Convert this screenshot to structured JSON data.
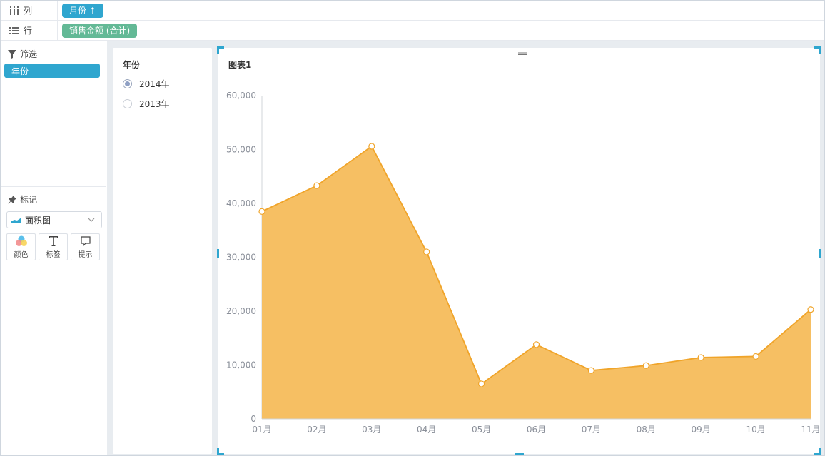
{
  "shelves": {
    "columns": {
      "label": "列",
      "pill": "月份 ↑"
    },
    "rows": {
      "label": "行",
      "pill": "销售金额 (合计)"
    }
  },
  "filter": {
    "title": "筛选",
    "pill": "年份"
  },
  "marks": {
    "title": "标记",
    "chart_type": "面积图",
    "buttons": [
      {
        "label": "颜色",
        "icon": "color-icon"
      },
      {
        "label": "标签",
        "icon": "text-icon"
      },
      {
        "label": "提示",
        "icon": "tooltip-icon"
      }
    ]
  },
  "year_filter": {
    "title": "年份",
    "options": [
      {
        "label": "2014年",
        "selected": true
      },
      {
        "label": "2013年",
        "selected": false
      }
    ]
  },
  "chart": {
    "title": "图表1"
  },
  "colors": {
    "accent": "#2fa6cf",
    "green_pill": "#63b996",
    "area_fill": "#f6bf63",
    "area_line": "#f0a429"
  },
  "chart_data": {
    "type": "area",
    "title": "图表1",
    "categories": [
      "01月",
      "02月",
      "03月",
      "04月",
      "05月",
      "06月",
      "07月",
      "08月",
      "09月",
      "10月",
      "11月"
    ],
    "series": [
      {
        "values": [
          38500,
          43300,
          50600,
          31000,
          6500,
          13800,
          9000,
          9900,
          11400,
          11600,
          20300
        ]
      }
    ],
    "y_ticks": [
      "0",
      "10,000",
      "20,000",
      "30,000",
      "40,000",
      "50,000",
      "60,000"
    ],
    "ylim": [
      0,
      60000
    ],
    "grid": false
  }
}
